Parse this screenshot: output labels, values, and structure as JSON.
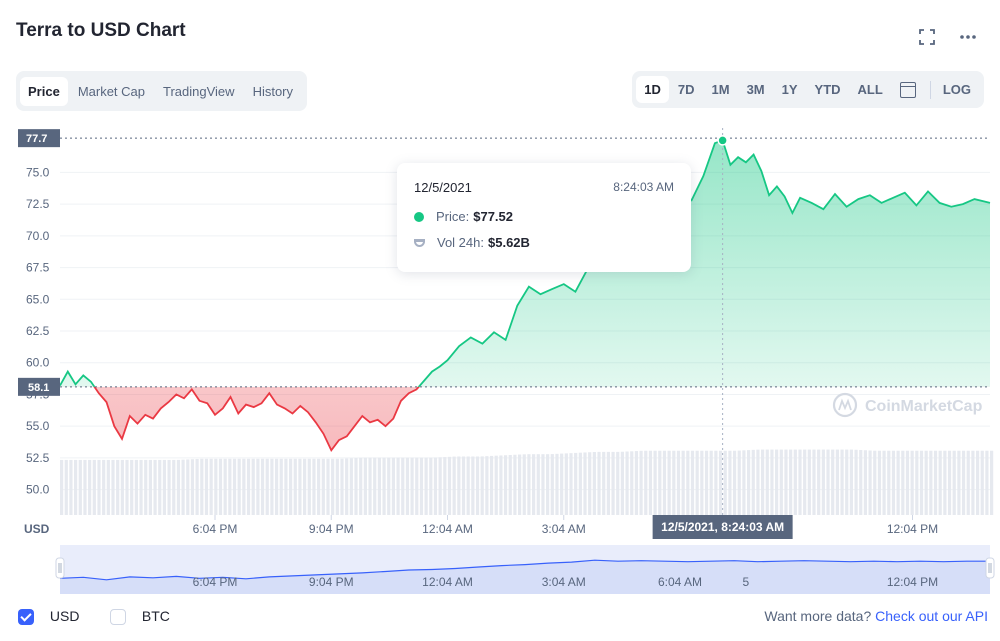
{
  "header": {
    "title": "Terra to USD Chart",
    "fullscreen_icon": "fullscreen-icon",
    "more_icon": "more-dots-icon"
  },
  "tabs": [
    {
      "label": "Price",
      "active": true
    },
    {
      "label": "Market Cap",
      "active": false
    },
    {
      "label": "TradingView",
      "active": false
    },
    {
      "label": "History",
      "active": false
    }
  ],
  "ranges": [
    {
      "label": "1D",
      "active": true
    },
    {
      "label": "7D",
      "active": false
    },
    {
      "label": "1M",
      "active": false
    },
    {
      "label": "3M",
      "active": false
    },
    {
      "label": "1Y",
      "active": false
    },
    {
      "label": "YTD",
      "active": false
    },
    {
      "label": "ALL",
      "active": false
    }
  ],
  "calendar_icon": "calendar-icon",
  "log_label": "LOG",
  "tooltip": {
    "date": "12/5/2021",
    "time": "8:24:03 AM",
    "price_label": "Price:",
    "price_value": "$77.52",
    "vol_label": "Vol 24h:",
    "vol_value": "$5.62B"
  },
  "crosshair_label": "12/5/2021, 8:24:03 AM",
  "watermark": "CoinMarketCap",
  "footer": {
    "usd_label": "USD",
    "usd_checked": true,
    "btc_label": "BTC",
    "btc_checked": false,
    "more_data_text": "Want more data?",
    "api_link_text": "Check out our API"
  },
  "colors": {
    "up": "#16c784",
    "down": "#ea3943",
    "accent": "#3861fb",
    "volume": "#e6e9ef",
    "navigator_line": "#3861fb"
  },
  "chart_data": {
    "type": "line",
    "ylabel": "USD",
    "y_ticks": [
      "50.0",
      "52.5",
      "55.0",
      "57.5",
      "60.0",
      "62.5",
      "65.0",
      "67.5",
      "70.0",
      "72.5",
      "75.0"
    ],
    "ylim": [
      48.0,
      78.5
    ],
    "x_ticks": [
      "6:04 PM",
      "9:04 PM",
      "12:04 AM",
      "3:04 AM",
      "6:04 AM",
      "12:04 PM"
    ],
    "navigator_ticks": [
      "6:04 PM",
      "9:04 PM",
      "12:04 AM",
      "3:04 AM",
      "6:04 AM",
      "5",
      "12:04 PM"
    ],
    "x_range_hours": [
      0,
      24
    ],
    "x_tick_hours": [
      4.0,
      7.0,
      10.0,
      13.0,
      16.0,
      22.0
    ],
    "baseline": 58.1,
    "baseline_label": "58.1",
    "high": 77.7,
    "high_label": "77.7",
    "hover_x_hours": 17.1,
    "hover_value": 77.52,
    "grid": true,
    "series": [
      {
        "x": [
          0,
          0.2,
          0.4,
          0.6,
          0.8,
          1.0,
          1.2,
          1.4,
          1.6,
          1.8,
          2.0,
          2.2,
          2.4,
          2.6,
          2.8,
          3.0,
          3.2,
          3.4,
          3.6,
          3.8,
          4.0,
          4.2,
          4.4,
          4.6,
          4.8,
          5.0,
          5.2,
          5.4,
          5.6,
          5.8,
          6.0,
          6.2,
          6.4,
          6.6,
          6.8,
          7.0,
          7.2,
          7.4,
          7.6,
          7.8,
          8.0,
          8.2,
          8.4,
          8.6,
          8.8,
          9.0,
          9.2,
          9.4,
          9.6,
          9.8,
          10.0,
          10.3,
          10.6,
          10.9,
          11.2,
          11.5,
          11.8,
          12.1,
          12.4,
          12.7,
          13.0,
          13.3,
          13.6,
          13.9,
          14.2,
          14.5,
          14.8,
          15.1,
          15.4,
          15.7,
          16.0,
          16.3,
          16.6,
          16.9,
          17.1,
          17.3,
          17.5,
          17.7,
          17.9,
          18.1,
          18.3,
          18.5,
          18.7,
          18.9,
          19.1,
          19.4,
          19.7,
          20.0,
          20.3,
          20.6,
          20.9,
          21.2,
          21.5,
          21.8,
          22.1,
          22.4,
          22.7,
          23.0,
          23.3,
          23.6,
          24.0
        ],
        "values": [
          58.2,
          59.3,
          58.3,
          59.0,
          58.5,
          57.6,
          56.9,
          55.0,
          54.0,
          55.8,
          55.2,
          55.9,
          55.6,
          56.4,
          56.9,
          57.5,
          57.2,
          57.9,
          57.0,
          56.8,
          55.9,
          56.4,
          57.3,
          56.0,
          56.7,
          56.5,
          56.8,
          57.6,
          56.7,
          56.4,
          56.0,
          56.6,
          56.1,
          55.3,
          54.4,
          53.1,
          53.9,
          54.2,
          55.0,
          55.8,
          55.3,
          55.5,
          55.0,
          55.6,
          57.0,
          57.6,
          57.9,
          58.6,
          59.3,
          59.7,
          60.2,
          61.3,
          62.0,
          61.5,
          62.4,
          61.8,
          64.5,
          66.0,
          65.4,
          65.8,
          66.2,
          65.6,
          67.3,
          69.0,
          68.7,
          70.2,
          69.8,
          71.3,
          70.5,
          72.4,
          73.5,
          72.8,
          74.7,
          77.3,
          77.52,
          75.6,
          76.2,
          75.8,
          76.4,
          75.1,
          73.2,
          73.9,
          73.1,
          71.8,
          73.0,
          72.6,
          72.1,
          73.3,
          72.3,
          72.9,
          73.2,
          72.6,
          73.0,
          73.4,
          72.4,
          73.5,
          72.6,
          72.3,
          72.5,
          72.9,
          72.6
        ]
      }
    ],
    "volume": {
      "ylim": [
        0,
        10
      ],
      "values": [
        4.8,
        4.8,
        4.8,
        4.8,
        4.8,
        4.8,
        4.9,
        4.9,
        4.9,
        4.9,
        4.9,
        4.9,
        4.9,
        5.0,
        5.0,
        5.0,
        5.0,
        5.1,
        5.1,
        5.2,
        5.3,
        5.3,
        5.4,
        5.5,
        5.5,
        5.6,
        5.6,
        5.6,
        5.6,
        5.6,
        5.7,
        5.7,
        5.7,
        5.7,
        5.7,
        5.6,
        5.6,
        5.6,
        5.6,
        5.6,
        5.6
      ]
    },
    "navigator": {
      "ylim": [
        0,
        10
      ],
      "values": [
        3.2,
        3.4,
        2.9,
        3.5,
        3.3,
        3.6,
        3.2,
        3.4,
        3.1,
        3.5,
        3.7,
        3.9,
        4.1,
        4.3,
        4.6,
        4.9,
        5.0,
        5.2,
        5.5,
        5.8,
        6.0,
        6.3,
        6.5,
        6.9,
        6.7,
        6.8,
        6.7,
        6.6,
        6.7,
        6.8,
        6.6,
        6.7,
        6.8,
        6.7,
        6.6,
        6.7,
        6.6,
        6.7,
        6.6,
        6.7,
        6.7
      ]
    }
  }
}
